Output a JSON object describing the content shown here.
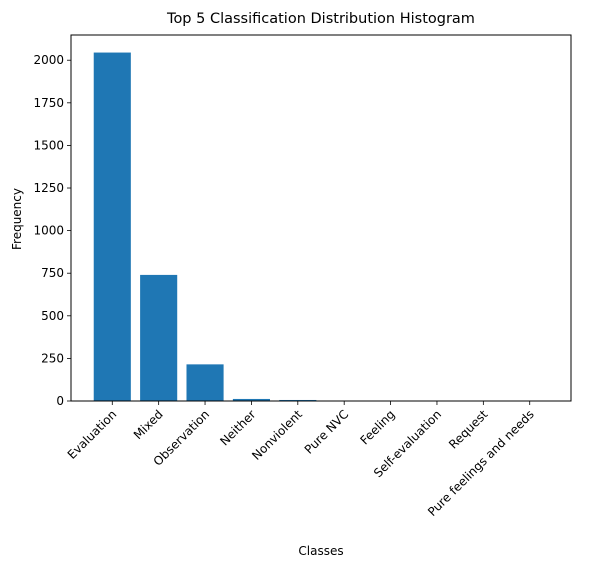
{
  "chart_data": {
    "type": "bar",
    "title": "Top 5 Classification Distribution Histogram",
    "xlabel": "Classes",
    "ylabel": "Frequency",
    "categories": [
      "Evaluation",
      "Mixed",
      "Observation",
      "Neither",
      "Nonviolent",
      "Pure NVC",
      "Feeling",
      "Self-evaluation",
      "Request",
      "Pure feelings and needs"
    ],
    "values": [
      2045,
      740,
      215,
      12,
      6,
      2,
      1,
      1,
      1,
      1
    ],
    "ylim": [
      0,
      2148
    ],
    "yticks": [
      0,
      250,
      500,
      750,
      1000,
      1250,
      1500,
      1750,
      2000
    ],
    "grid": false,
    "legend": "none",
    "bar_color": "#1f77b4"
  }
}
